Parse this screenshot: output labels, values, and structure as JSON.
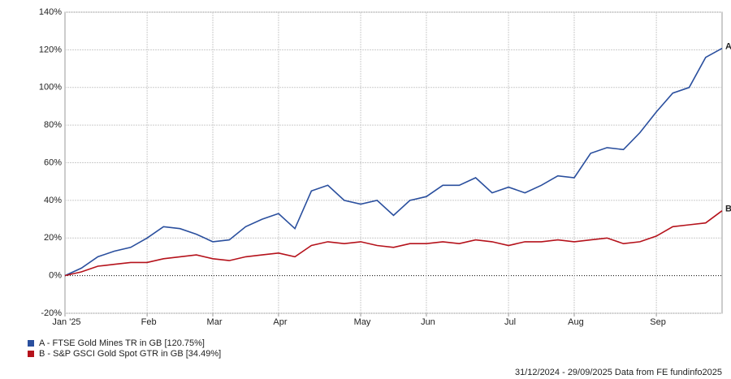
{
  "chart_data": {
    "type": "line",
    "categories": [
      "Jan '25",
      null,
      null,
      null,
      null,
      "Feb",
      null,
      null,
      null,
      "Mar",
      null,
      null,
      null,
      "Apr",
      null,
      null,
      null,
      null,
      "May",
      null,
      null,
      null,
      "Jun",
      null,
      null,
      null,
      null,
      "Jul",
      null,
      null,
      null,
      "Aug",
      null,
      null,
      null,
      null,
      "Sep",
      null,
      null,
      null,
      null
    ],
    "series": [
      {
        "name": "A - FTSE Gold Mines TR in GB [120.75%]",
        "end_label": "A",
        "color": "#2a4f9e",
        "values": [
          0,
          4,
          10,
          13,
          15,
          20,
          26,
          25,
          22,
          18,
          19,
          26,
          30,
          33,
          25,
          45,
          48,
          40,
          38,
          40,
          32,
          40,
          42,
          48,
          48,
          52,
          44,
          47,
          44,
          48,
          53,
          52,
          65,
          68,
          67,
          76,
          87,
          97,
          100,
          116,
          120.75
        ]
      },
      {
        "name": "B - S&P GSCI Gold Spot GTR in GB [34.49%]",
        "end_label": "B",
        "color": "#b5121b",
        "values": [
          0,
          2,
          5,
          6,
          7,
          7,
          9,
          10,
          11,
          9,
          8,
          10,
          11,
          12,
          10,
          16,
          18,
          17,
          18,
          16,
          15,
          17,
          17,
          18,
          17,
          19,
          18,
          16,
          18,
          18,
          19,
          18,
          19,
          20,
          17,
          18,
          21,
          26,
          27,
          28,
          34.49
        ]
      }
    ],
    "ylim": [
      -20,
      140
    ],
    "yticks": [
      {
        "value": -20,
        "label": "-20%"
      },
      {
        "value": 0,
        "label": "0%"
      },
      {
        "value": 20,
        "label": "20%"
      },
      {
        "value": 40,
        "label": "40%"
      },
      {
        "value": 60,
        "label": "60%"
      },
      {
        "value": 80,
        "label": "80%"
      },
      {
        "value": 100,
        "label": "100%"
      },
      {
        "value": 120,
        "label": "120%"
      },
      {
        "value": 140,
        "label": "140%"
      }
    ],
    "grid": true,
    "footer": "31/12/2024 - 29/09/2025 Data from FE fundinfo2025"
  }
}
